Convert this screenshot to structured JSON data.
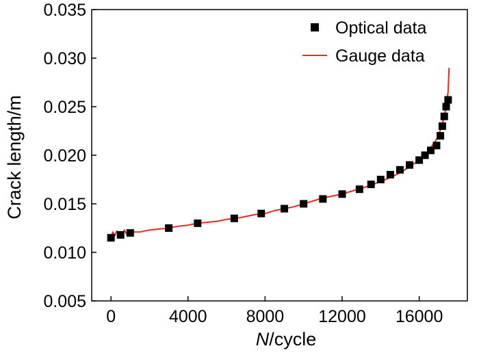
{
  "chart_data": {
    "type": "scatter",
    "xlabel_italic": "N",
    "xlabel_rest": "/cycle",
    "ylabel": "Crack length/m",
    "xlim": [
      -1000,
      18500
    ],
    "ylim": [
      0.005,
      0.035
    ],
    "x_ticks": [
      {
        "value": 0,
        "label": "0"
      },
      {
        "value": 4000,
        "label": "4000"
      },
      {
        "value": 8000,
        "label": "8000"
      },
      {
        "value": 12000,
        "label": "12000"
      },
      {
        "value": 16000,
        "label": "16000"
      }
    ],
    "y_ticks": [
      {
        "value": 0.005,
        "label": "0.005"
      },
      {
        "value": 0.01,
        "label": "0.010"
      },
      {
        "value": 0.015,
        "label": "0.015"
      },
      {
        "value": 0.02,
        "label": "0.020"
      },
      {
        "value": 0.025,
        "label": "0.025"
      },
      {
        "value": 0.03,
        "label": "0.030"
      },
      {
        "value": 0.035,
        "label": "0.035"
      }
    ],
    "legend_position": "top-right",
    "series": [
      {
        "name": "Optical data",
        "kind": "scatter",
        "color": "#000000",
        "marker": "square",
        "x": [
          0,
          500,
          1000,
          3000,
          4500,
          6400,
          7800,
          9000,
          10000,
          11000,
          12000,
          12900,
          13500,
          14000,
          14500,
          15000,
          15500,
          16000,
          16300,
          16600,
          16900,
          17100,
          17200,
          17300,
          17400,
          17500
        ],
        "y": [
          0.0115,
          0.0118,
          0.012,
          0.0125,
          0.013,
          0.0135,
          0.014,
          0.0145,
          0.015,
          0.0155,
          0.016,
          0.0165,
          0.017,
          0.0175,
          0.018,
          0.0185,
          0.019,
          0.0195,
          0.02,
          0.0205,
          0.021,
          0.022,
          0.023,
          0.024,
          0.025,
          0.0257
        ]
      },
      {
        "name": "Gauge data",
        "kind": "line",
        "color": "#e8291c",
        "x": [
          0,
          100,
          200,
          300,
          400,
          500,
          600,
          700,
          800,
          900,
          1000,
          1500,
          2000,
          2500,
          3000,
          3500,
          4000,
          4500,
          5000,
          5500,
          6000,
          6500,
          7000,
          7500,
          8000,
          8500,
          9000,
          9500,
          10000,
          10500,
          11000,
          11500,
          12000,
          12500,
          13000,
          13500,
          14000,
          14500,
          15000,
          15500,
          16000,
          16400,
          16800,
          17000,
          17200,
          17300,
          17400,
          17500,
          17550
        ],
        "y": [
          0.0116,
          0.0121,
          0.0117,
          0.0122,
          0.0118,
          0.0121,
          0.0119,
          0.0123,
          0.0119,
          0.0121,
          0.0121,
          0.0121,
          0.0123,
          0.0124,
          0.0125,
          0.0127,
          0.0128,
          0.013,
          0.0131,
          0.0132,
          0.0134,
          0.0135,
          0.0137,
          0.0139,
          0.014,
          0.0143,
          0.0145,
          0.0147,
          0.015,
          0.0153,
          0.0156,
          0.0158,
          0.016,
          0.0163,
          0.0166,
          0.0169,
          0.0173,
          0.0177,
          0.0182,
          0.0188,
          0.0195,
          0.0203,
          0.0213,
          0.022,
          0.0232,
          0.024,
          0.025,
          0.0265,
          0.029
        ]
      }
    ]
  }
}
